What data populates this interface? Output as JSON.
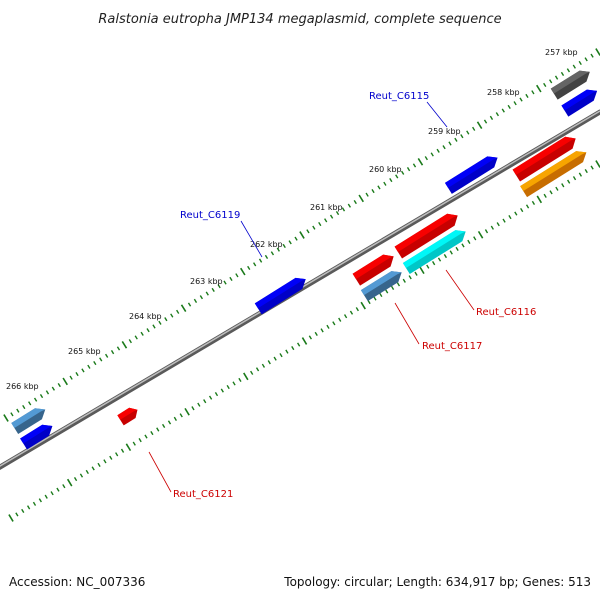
{
  "title": "Ralstonia eutropha JMP134 megaplasmid, complete sequence",
  "footer": {
    "accession": "Accession: NC_007336",
    "summary": "Topology: circular; Length: 634,917 bp; Genes: 513"
  },
  "scale_labels": [
    "257 kbp",
    "258 kbp",
    "259 kbp",
    "260 kbp",
    "261 kbp",
    "262 kbp",
    "263 kbp",
    "264 kbp",
    "265 kbp",
    "266 kbp"
  ],
  "gene_labels": {
    "reut_c6115": "Reut_C6115",
    "reut_c6119": "Reut_C6119",
    "reut_c6116": "Reut_C6116",
    "reut_c6117": "Reut_C6117",
    "reut_c6121": "Reut_C6121"
  },
  "colors": {
    "forward_cds": "#0000ff",
    "reverse_cds": "#ff0000",
    "steelblue_feature": "#4682b4",
    "cyan_feature": "#00ffff",
    "orange_feature": "#ff8c00",
    "gray_feature": "#555555",
    "tick": "#1a7a1a",
    "backbone": "#808080",
    "forward_label": "#0000cc",
    "reverse_label": "#cc0000"
  }
}
